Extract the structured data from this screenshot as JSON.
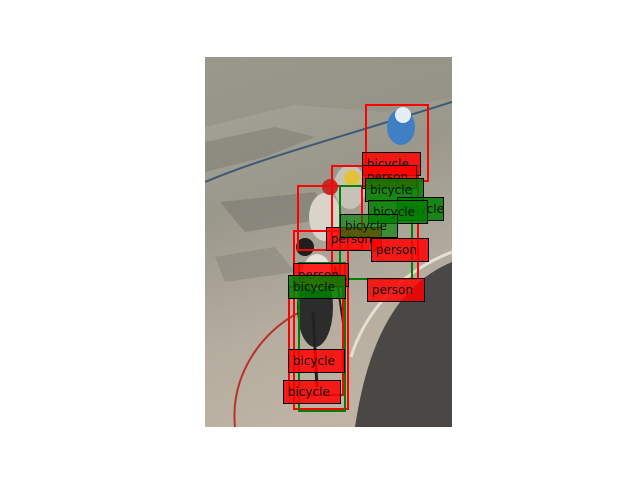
{
  "image": {
    "description_icon": "cyclists-on-velodrome-photo",
    "colors": {
      "detection": "#ff0000",
      "ground_truth": "#008000"
    }
  },
  "labels": [
    "bicycle",
    "person",
    "bicycle",
    "bicycle",
    "bicycle",
    "person",
    "person",
    "bicycle",
    "person",
    "bicycle",
    "person",
    "bicycle",
    "bicycle"
  ]
}
